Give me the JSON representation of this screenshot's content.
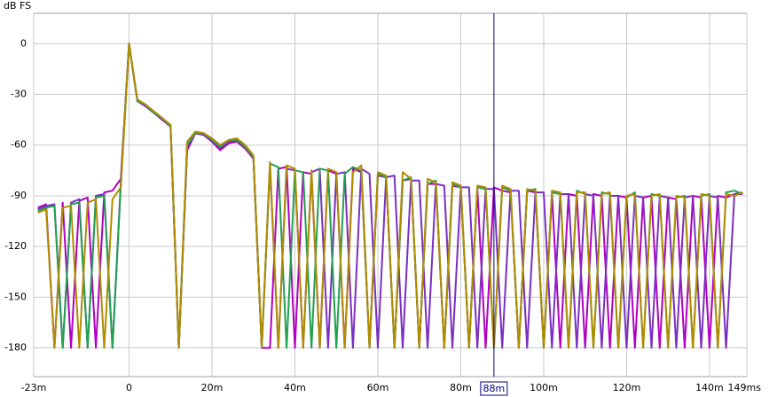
{
  "chart_data": {
    "type": "line",
    "y_label": "dB FS",
    "x": [
      -22,
      -20,
      -18,
      -16,
      -14,
      -12,
      -10,
      -8,
      -6,
      -4,
      -2,
      0,
      2,
      4,
      6,
      8,
      10,
      12,
      14,
      16,
      18,
      20,
      22,
      24,
      26,
      28,
      30,
      32,
      34,
      36,
      38,
      40,
      42,
      44,
      46,
      48,
      50,
      52,
      54,
      56,
      58,
      60,
      62,
      64,
      66,
      68,
      70,
      72,
      74,
      76,
      78,
      80,
      82,
      84,
      86,
      88,
      90,
      92,
      94,
      96,
      98,
      100,
      102,
      104,
      106,
      108,
      110,
      112,
      114,
      116,
      118,
      120,
      122,
      124,
      126,
      128,
      130,
      132,
      134,
      136,
      138,
      140,
      142,
      144,
      146,
      148
    ],
    "series": [
      {
        "color": "#b000c0",
        "values": [
          -97,
          -95,
          -180,
          -94,
          -180,
          -93,
          -91,
          -180,
          -88,
          -87,
          -80,
          0,
          -34,
          -37,
          -41,
          -45,
          -49,
          -180,
          -63,
          -53,
          -54,
          -58,
          -63,
          -59,
          -58,
          -62,
          -68,
          -180,
          -180,
          -74,
          -73,
          -180,
          -76,
          -77,
          -180,
          -75,
          -77,
          -180,
          -74,
          -76,
          -180,
          -78,
          -79,
          -180,
          -81,
          -80,
          -180,
          -83,
          -83,
          -180,
          -84,
          -85,
          -180,
          -86,
          -180,
          -85,
          -87,
          -88,
          -180,
          -87,
          -88,
          -180,
          -89,
          -180,
          -89,
          -90,
          -180,
          -89,
          -90,
          -180,
          -90,
          -91,
          -180,
          -91,
          -90,
          -180,
          -91,
          -92,
          -180,
          -90,
          -91,
          -180,
          -90,
          -91,
          -89,
          -89
        ]
      },
      {
        "color": "#7a30c0",
        "values": [
          -98,
          -96,
          -95,
          -180,
          -94,
          -92,
          -180,
          -90,
          -89,
          -180,
          -82,
          0,
          -34,
          -37,
          -41,
          -45,
          -49,
          -180,
          -61,
          -53,
          -54,
          -57,
          -62,
          -58,
          -57,
          -61,
          -67,
          -180,
          -72,
          -180,
          -74,
          -75,
          -180,
          -76,
          -74,
          -180,
          -77,
          -76,
          -180,
          -74,
          -77,
          -180,
          -79,
          -78,
          -180,
          -81,
          -81,
          -180,
          -83,
          -84,
          -180,
          -85,
          -85,
          -180,
          -86,
          -86,
          -180,
          -87,
          -87,
          -180,
          -88,
          -88,
          -180,
          -89,
          -89,
          -180,
          -89,
          -90,
          -180,
          -90,
          -90,
          -180,
          -90,
          -91,
          -180,
          -90,
          -91,
          -180,
          -91,
          -90,
          -180,
          -90,
          -91,
          -180,
          -89,
          -88
        ]
      },
      {
        "color": "#20a050",
        "values": [
          -99,
          -97,
          -96,
          -180,
          -95,
          -94,
          -180,
          -91,
          -90,
          -180,
          -84,
          0,
          -34,
          -36,
          -41,
          -44,
          -49,
          -180,
          -60,
          -53,
          -53,
          -57,
          -61,
          -57,
          -57,
          -61,
          -67,
          -180,
          -71,
          -73,
          -180,
          -75,
          -76,
          -180,
          -74,
          -75,
          -180,
          -77,
          -73,
          -75,
          -180,
          -77,
          -79,
          -180,
          -81,
          -79,
          -180,
          -83,
          -81,
          -180,
          -83,
          -85,
          -180,
          -85,
          -86,
          -180,
          -85,
          -87,
          -180,
          -87,
          -86,
          -180,
          -88,
          -89,
          -180,
          -87,
          -89,
          -180,
          -88,
          -89,
          -180,
          -91,
          -88,
          -180,
          -89,
          -90,
          -180,
          -91,
          -90,
          -180,
          -90,
          -89,
          -180,
          -88,
          -87,
          -89
        ]
      },
      {
        "color": "#b08c00",
        "values": [
          -100,
          -98,
          -180,
          -97,
          -96,
          -180,
          -94,
          -92,
          -180,
          -92,
          -85,
          0,
          -33,
          -36,
          -40,
          -44,
          -48,
          -180,
          -58,
          -52,
          -53,
          -56,
          -60,
          -57,
          -56,
          -60,
          -66,
          -180,
          -70,
          -180,
          -72,
          -74,
          -180,
          -75,
          -180,
          -74,
          -76,
          -180,
          -76,
          -72,
          -180,
          -76,
          -78,
          -180,
          -76,
          -80,
          -180,
          -80,
          -82,
          -180,
          -82,
          -84,
          -180,
          -84,
          -85,
          -180,
          -84,
          -86,
          -180,
          -86,
          -87,
          -180,
          -87,
          -88,
          -180,
          -88,
          -88,
          -180,
          -89,
          -88,
          -180,
          -90,
          -89,
          -180,
          -90,
          -89,
          -180,
          -90,
          -91,
          -180,
          -89,
          -90,
          -180,
          -89,
          -90,
          -88
        ]
      }
    ],
    "xlim": [
      -23,
      149
    ],
    "ylim": [
      -197,
      18
    ],
    "xticks": [
      {
        "value": -23,
        "label": "-23m"
      },
      0,
      {
        "value": 20,
        "label": "20m"
      },
      {
        "value": 40,
        "label": "40m"
      },
      {
        "value": 60,
        "label": "60m"
      },
      {
        "value": 80,
        "label": "80m"
      },
      {
        "value": 100,
        "label": "100m"
      },
      {
        "value": 120,
        "label": "120m"
      },
      {
        "value": 140,
        "label": "140m"
      },
      {
        "value": 149,
        "label": "149ms"
      }
    ],
    "yticks": [
      0,
      -30,
      -60,
      -90,
      -120,
      -150,
      -180
    ],
    "grid": true,
    "cursor": {
      "value": 88,
      "label": "88m",
      "color": "#000080"
    }
  }
}
